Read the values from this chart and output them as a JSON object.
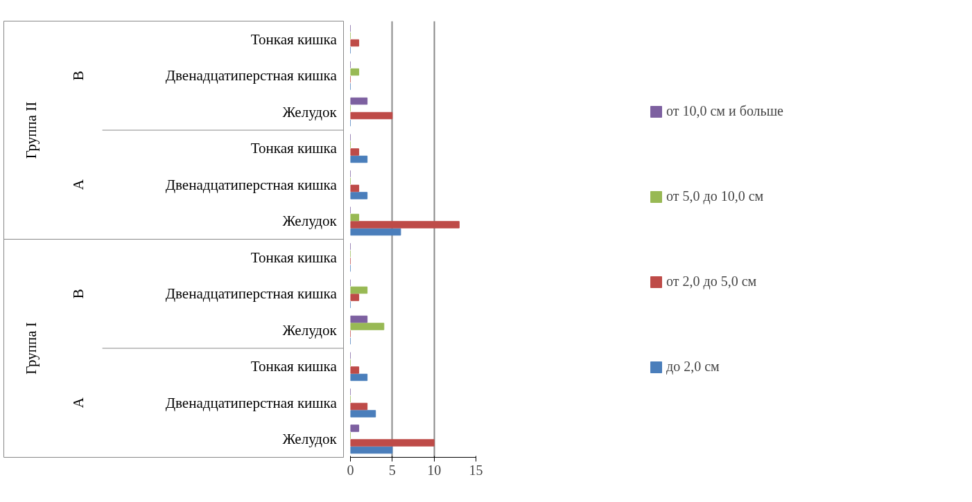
{
  "chart_data": {
    "type": "bar",
    "orientation": "horizontal",
    "categories": [
      "Тонкая кишка",
      "Двенадцатиперстная кишка",
      "Желудок",
      "Тонкая кишка",
      "Двенадцатиперстная кишка",
      "Желудок",
      "Тонкая кишка",
      "Двенадцатиперстная кишка",
      "Желудок",
      "Тонкая кишка",
      "Двенадцатиперстная кишка",
      "Желудок"
    ],
    "annotations": [
      "B",
      "A",
      "B",
      "A",
      "Группа II",
      "Группа I"
    ],
    "series": [
      {
        "name": "до 2,0 см",
        "color": "#4a7ebb",
        "values": [
          0,
          0,
          0,
          2,
          2,
          6,
          0,
          0,
          0,
          2,
          3,
          5
        ]
      },
      {
        "name": "от 2,0 до 5,0 см",
        "color": "#be4b48",
        "values": [
          1,
          0,
          5,
          1,
          1,
          13,
          0,
          1,
          0,
          1,
          2,
          10
        ]
      },
      {
        "name": "от 5,0 до 10,0 см",
        "color": "#98b954",
        "values": [
          0,
          1,
          0,
          0,
          0,
          1,
          0,
          2,
          4,
          0,
          0,
          0
        ]
      },
      {
        "name": "от 10,0 см и больше",
        "color": "#7d60a0",
        "values": [
          0,
          0,
          2,
          0,
          0,
          0,
          0,
          0,
          2,
          0,
          0,
          1
        ]
      }
    ],
    "xlim": [
      0,
      15
    ],
    "xticks": [
      0,
      5,
      10,
      15
    ],
    "grid": "x",
    "legend": "right"
  }
}
